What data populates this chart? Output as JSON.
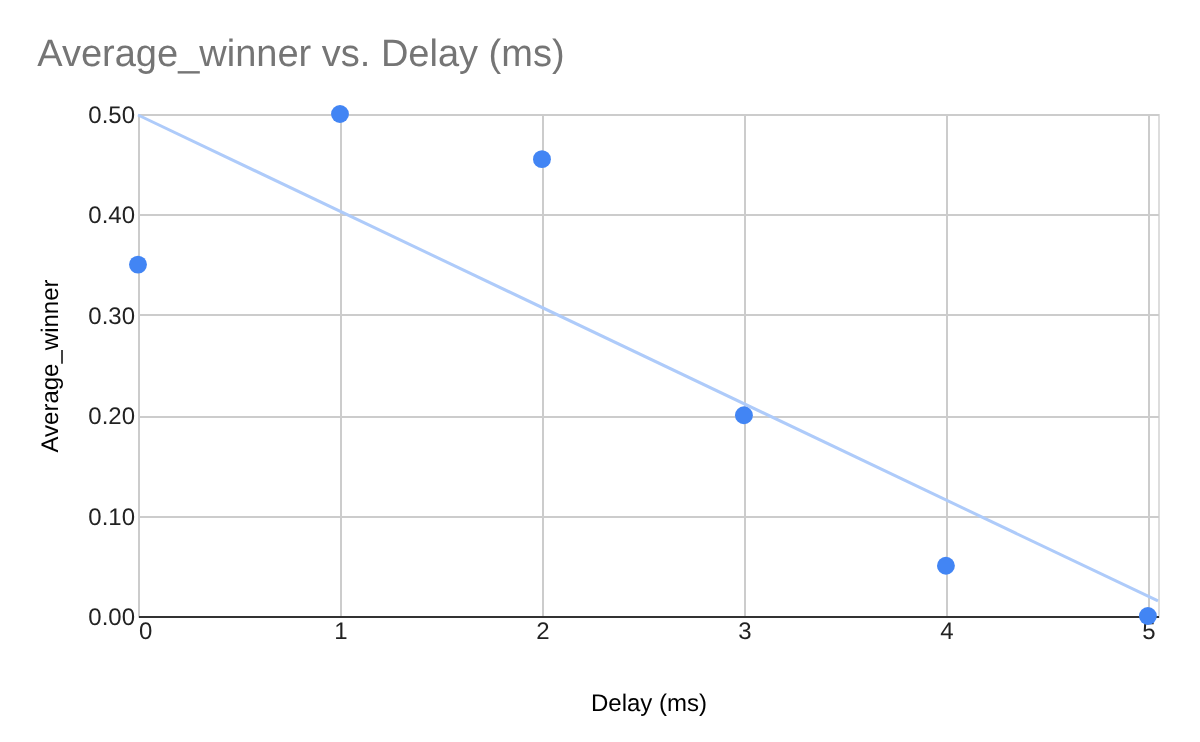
{
  "chart_data": {
    "type": "scatter",
    "title": "Average_winner vs. Delay (ms)",
    "xlabel": "Delay (ms)",
    "ylabel": "Average_winner",
    "x": [
      0,
      1,
      2,
      3,
      4,
      5
    ],
    "series": [
      {
        "type": "line",
        "marker": "none",
        "color": "#aecbfa",
        "x": [
          0,
          5.05
        ],
        "values": [
          0.499,
          0.015
        ]
      },
      {
        "color": "#4285f4",
        "values": [
          0.35,
          0.5,
          0.455,
          0.2,
          0.05,
          0.0
        ]
      }
    ],
    "xlim": [
      0,
      5.05
    ],
    "xticks": [
      0,
      1,
      2,
      3,
      4,
      5
    ],
    "ylim": [
      0,
      0.5
    ],
    "yticks": [
      {
        "value": 0,
        "label": "0.00"
      },
      {
        "value": 0.1,
        "label": "0.10"
      },
      {
        "value": 0.2,
        "label": "0.20"
      },
      {
        "value": 0.3,
        "label": "0.30"
      },
      {
        "value": 0.4,
        "label": "0.40"
      },
      {
        "value": 0.5,
        "label": "0.50"
      }
    ],
    "grid": true,
    "marker": "circle"
  }
}
